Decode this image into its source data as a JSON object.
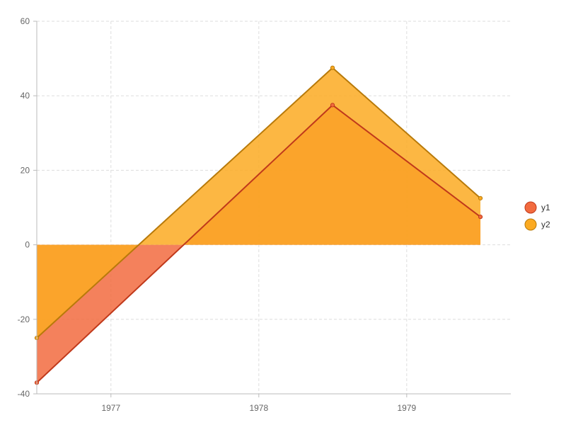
{
  "chart_data": {
    "type": "area",
    "x": [
      "1976-07-02",
      "1978-07-02",
      "1979-07-02"
    ],
    "series": [
      {
        "name": "y1",
        "values": [
          -37,
          37.5,
          7.5
        ],
        "color": "#f26b3f",
        "stroke": "#c0391b"
      },
      {
        "name": "y2",
        "values": [
          -25,
          47.5,
          12.5
        ],
        "color": "#fbaa22",
        "stroke": "#b87a0a"
      }
    ],
    "stacked": false,
    "xlim": [
      "1976-07-02",
      "1979-09-15"
    ],
    "ylim": [
      -40,
      60
    ],
    "xticks": [
      {
        "date": "1977-01-01",
        "label": "1977"
      },
      {
        "date": "1978-01-01",
        "label": "1978"
      },
      {
        "date": "1979-01-01",
        "label": "1979"
      }
    ],
    "yticks": [
      -40,
      -20,
      0,
      20,
      40,
      60
    ],
    "grid": true,
    "legend_position": "right",
    "title": "",
    "xlabel": "",
    "ylabel": ""
  }
}
